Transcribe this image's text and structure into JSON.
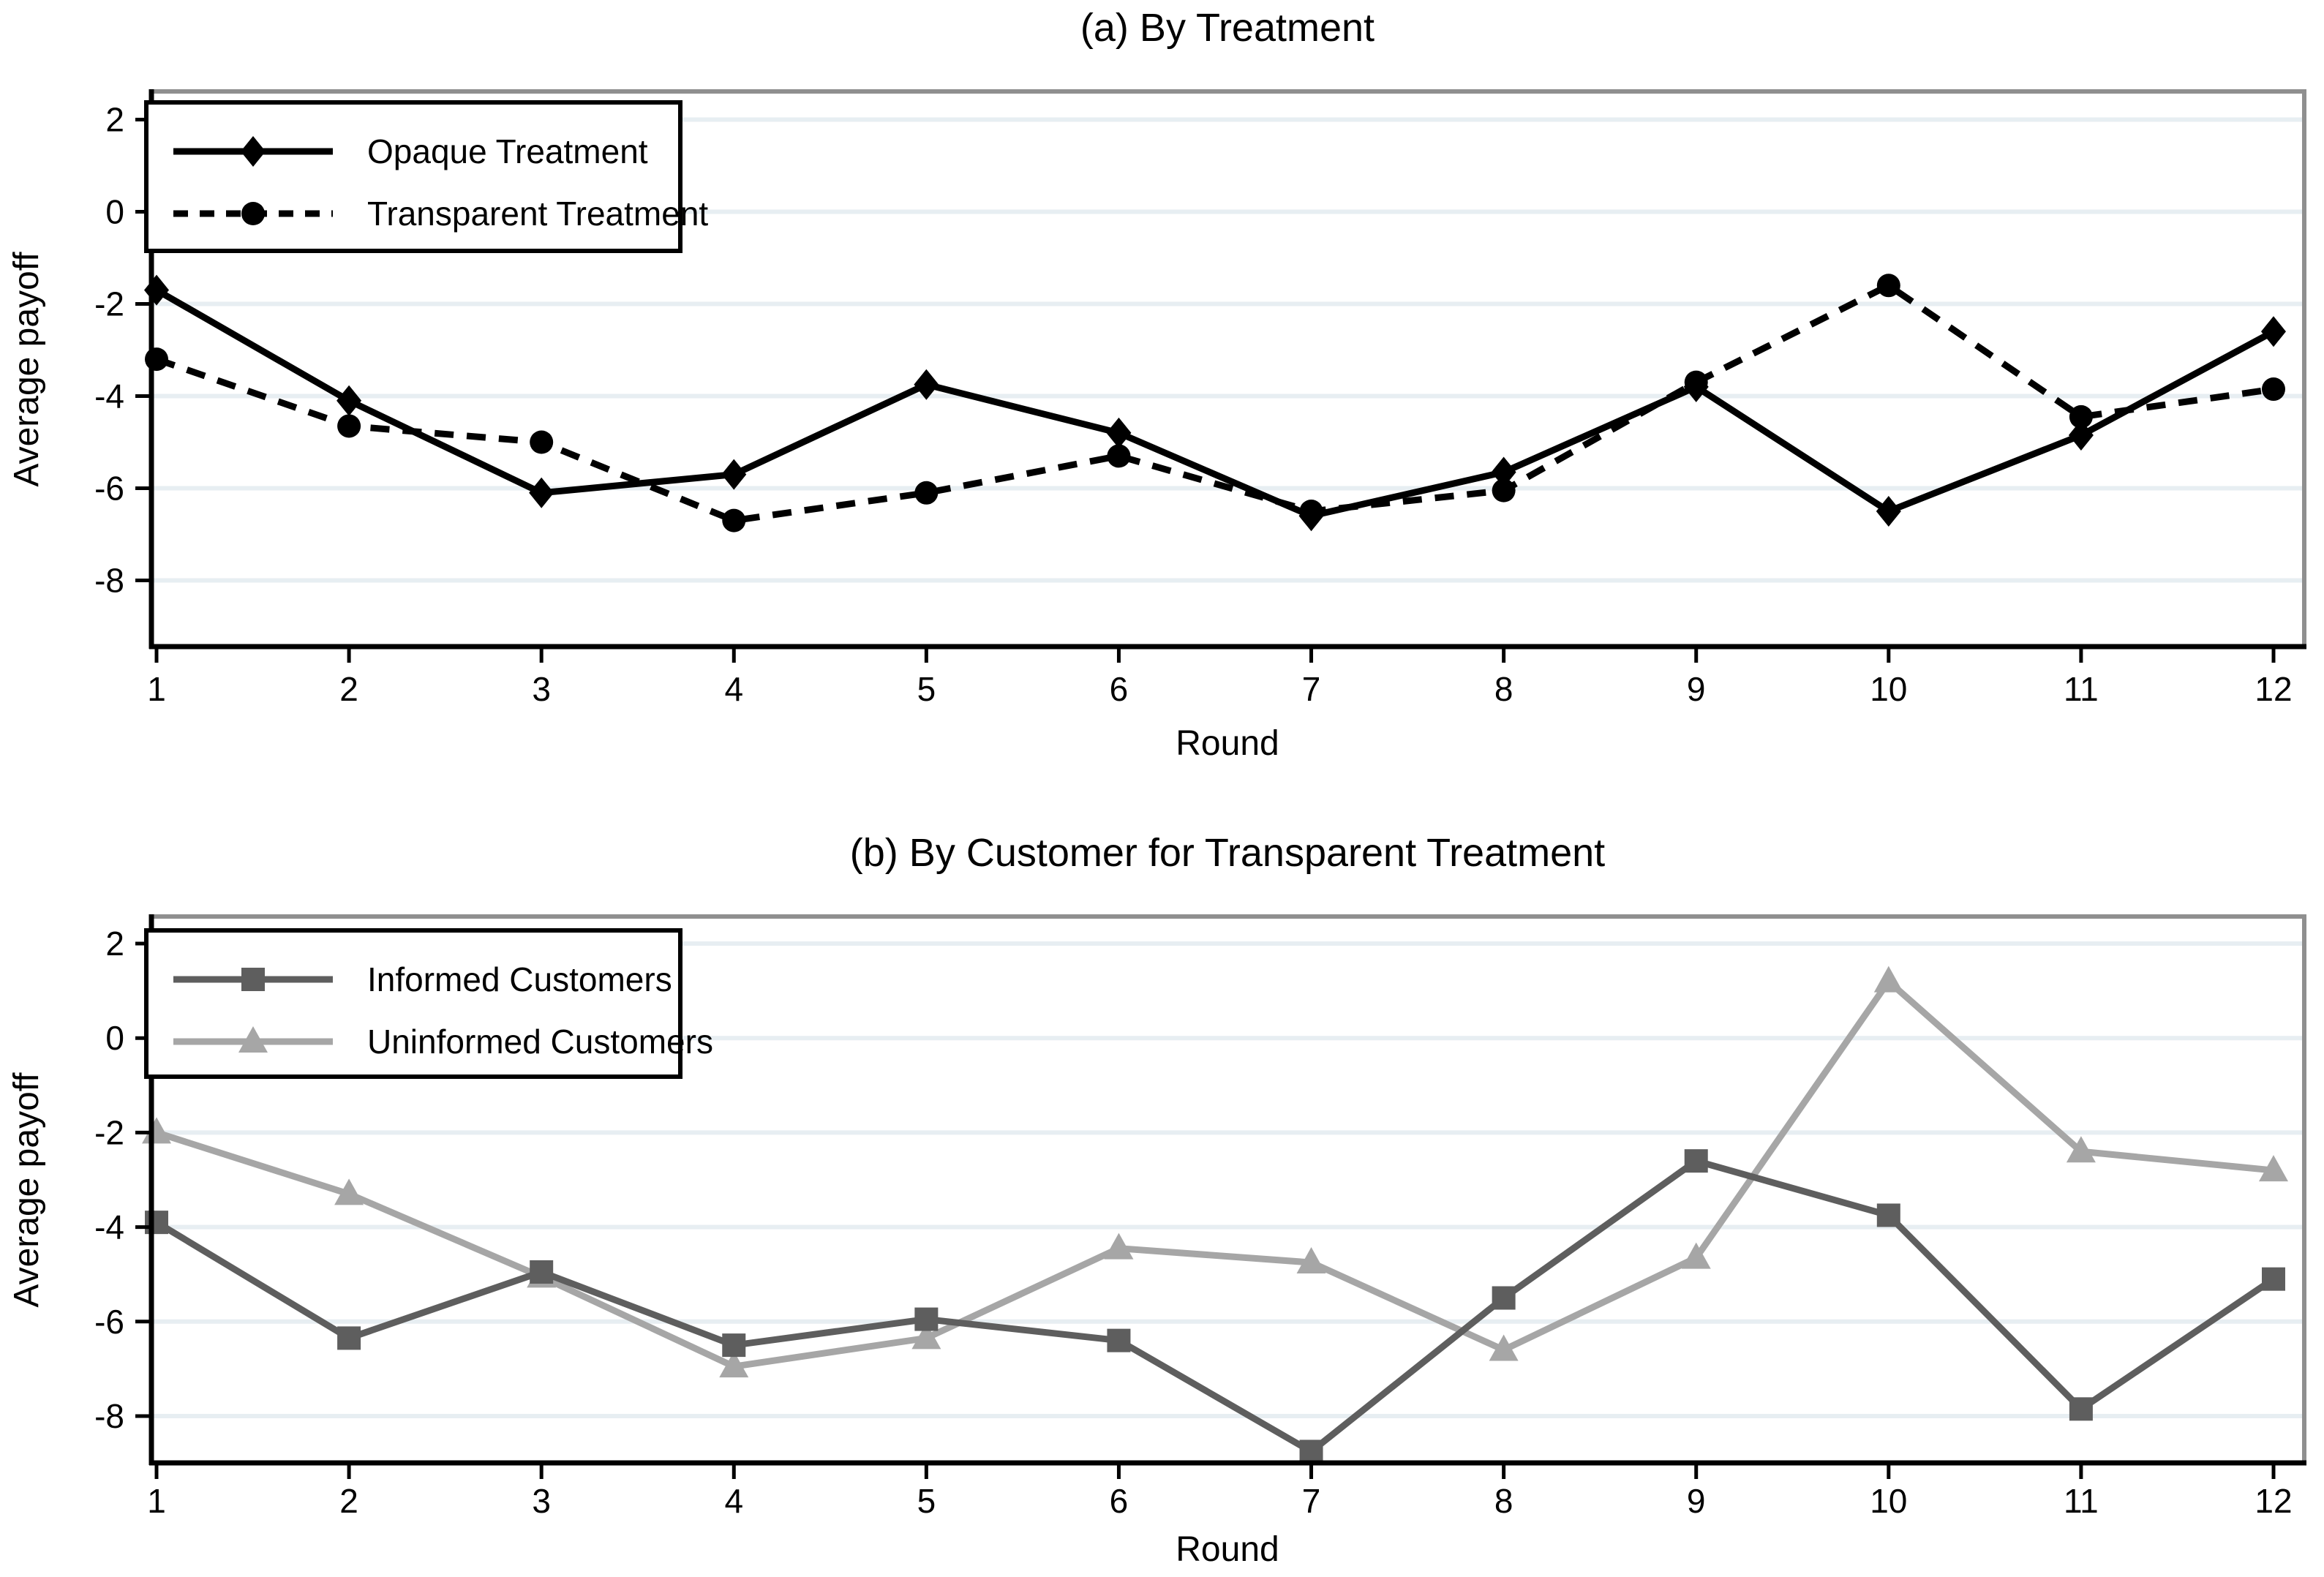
{
  "page": {
    "background": "#ffffff",
    "colors": {
      "axis": "#000000",
      "frame_gray": "#8f8f8f",
      "gridline": "#e7eef2",
      "opaque_treatment": "#000000",
      "transparent_treatment": "#000000",
      "informed_customers": "#5e5e5e",
      "uninformed_customers": "#a6a6a6"
    }
  },
  "chart_data": [
    {
      "type": "line",
      "title": "(a) By Treatment",
      "xlabel": "Round",
      "ylabel": "Average payoff",
      "x": [
        1,
        2,
        3,
        4,
        5,
        6,
        7,
        8,
        9,
        10,
        11,
        12
      ],
      "xtick_labels": [
        "1",
        "2",
        "3",
        "4",
        "5",
        "6",
        "7",
        "8",
        "9",
        "10",
        "11",
        "12"
      ],
      "yticks": [
        2,
        0,
        -2,
        -4,
        -6,
        -8
      ],
      "ytick_labels": [
        "2",
        "0",
        "-2",
        "-4",
        "-6",
        "-8"
      ],
      "ylim": [
        -9.4,
        2.6
      ],
      "xlim": [
        0.97,
        12.16
      ],
      "grid": true,
      "legend_position": "top-left",
      "series": [
        {
          "name": "Opaque Treatment",
          "color": "#000000",
          "line_style": "solid",
          "marker": "diamond",
          "values": [
            -1.7,
            -4.1,
            -6.1,
            -5.7,
            -3.75,
            -4.8,
            -6.6,
            -5.65,
            -3.8,
            -6.5,
            -4.85,
            -2.6
          ]
        },
        {
          "name": "Transparent Treatment",
          "color": "#000000",
          "line_style": "dashed",
          "marker": "circle",
          "values": [
            -3.2,
            -4.65,
            -5.0,
            -6.7,
            -6.1,
            -5.3,
            -6.5,
            -6.05,
            -3.7,
            -1.6,
            -4.45,
            -3.85
          ]
        }
      ]
    },
    {
      "type": "line",
      "title": "(b) By Customer for Transparent Treatment",
      "xlabel": "Round",
      "ylabel": "Average payoff",
      "x": [
        1,
        2,
        3,
        4,
        5,
        6,
        7,
        8,
        9,
        10,
        11,
        12
      ],
      "xtick_labels": [
        "1",
        "2",
        "3",
        "4",
        "5",
        "6",
        "7",
        "8",
        "9",
        "10",
        "11",
        "12"
      ],
      "yticks": [
        2,
        0,
        -2,
        -4,
        -6,
        -8
      ],
      "ytick_labels": [
        "2",
        "0",
        "-2",
        "-4",
        "-6",
        "-8"
      ],
      "ylim": [
        -8.9,
        2.6
      ],
      "xlim": [
        0.97,
        12.16
      ],
      "grid": true,
      "legend_position": "top-left",
      "series": [
        {
          "name": "Informed Customers",
          "color": "#5e5e5e",
          "line_style": "solid",
          "marker": "square",
          "values": [
            -3.9,
            -6.35,
            -4.95,
            -6.5,
            -5.95,
            -6.4,
            -8.75,
            -5.5,
            -2.6,
            -3.75,
            -7.85,
            -5.1
          ]
        },
        {
          "name": "Uninformed Customers",
          "color": "#a6a6a6",
          "line_style": "solid",
          "marker": "triangle",
          "values": [
            -2.0,
            -3.3,
            -5.05,
            -6.95,
            -6.35,
            -4.45,
            -4.75,
            -6.6,
            -4.65,
            1.2,
            -2.4,
            -2.8
          ]
        }
      ]
    }
  ]
}
